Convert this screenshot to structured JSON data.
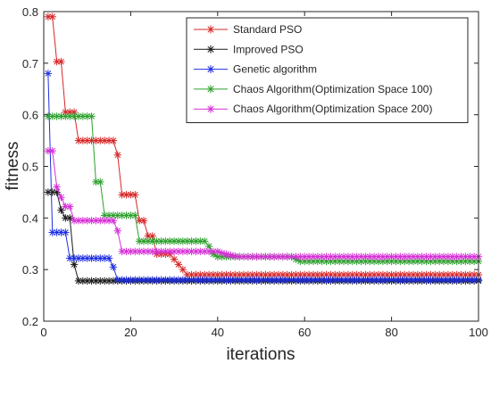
{
  "chart_data": {
    "type": "line",
    "xlabel": "iterations",
    "ylabel": "fitness",
    "xlim": [
      0,
      100
    ],
    "ylim": [
      0.2,
      0.8
    ],
    "x_ticks": [
      "0",
      "20",
      "40",
      "60",
      "80",
      "100"
    ],
    "y_ticks": [
      "0.2",
      "0.3",
      "0.4",
      "0.5",
      "0.6",
      "0.7",
      "0.8"
    ],
    "legend_position": "top-right",
    "grid": false,
    "series": [
      {
        "name": "Standard PSO",
        "color": "#d62728",
        "marker": "asterisk",
        "points": [
          [
            1,
            0.79
          ],
          [
            2,
            0.79
          ],
          [
            3,
            0.703
          ],
          [
            4,
            0.703
          ],
          [
            5,
            0.605
          ],
          [
            6,
            0.605
          ],
          [
            7,
            0.605
          ],
          [
            8,
            0.55
          ],
          [
            9,
            0.55
          ],
          [
            10,
            0.55
          ],
          [
            11,
            0.55
          ],
          [
            12,
            0.55
          ],
          [
            13,
            0.55
          ],
          [
            14,
            0.55
          ],
          [
            15,
            0.55
          ],
          [
            16,
            0.55
          ],
          [
            17,
            0.522
          ],
          [
            18,
            0.445
          ],
          [
            19,
            0.445
          ],
          [
            20,
            0.445
          ],
          [
            21,
            0.445
          ],
          [
            22,
            0.395
          ],
          [
            23,
            0.395
          ],
          [
            24,
            0.365
          ],
          [
            25,
            0.365
          ],
          [
            26,
            0.33
          ],
          [
            27,
            0.33
          ],
          [
            28,
            0.33
          ],
          [
            29,
            0.33
          ],
          [
            30,
            0.32
          ],
          [
            31,
            0.31
          ],
          [
            32,
            0.3
          ],
          [
            33,
            0.29
          ],
          [
            34,
            0.29
          ],
          [
            100,
            0.29
          ]
        ]
      },
      {
        "name": "Improved PSO",
        "color": "#1a1a1a",
        "marker": "asterisk",
        "points": [
          [
            1,
            0.45
          ],
          [
            2,
            0.45
          ],
          [
            3,
            0.45
          ],
          [
            4,
            0.415
          ],
          [
            5,
            0.4
          ],
          [
            6,
            0.4
          ],
          [
            7,
            0.31
          ],
          [
            8,
            0.278
          ],
          [
            9,
            0.278
          ],
          [
            10,
            0.278
          ],
          [
            100,
            0.278
          ]
        ]
      },
      {
        "name": "Genetic algorithm",
        "color": "#1f2fe0",
        "marker": "asterisk",
        "points": [
          [
            1,
            0.68
          ],
          [
            2,
            0.372
          ],
          [
            3,
            0.372
          ],
          [
            4,
            0.372
          ],
          [
            5,
            0.372
          ],
          [
            6,
            0.322
          ],
          [
            7,
            0.322
          ],
          [
            8,
            0.322
          ],
          [
            9,
            0.322
          ],
          [
            10,
            0.322
          ],
          [
            11,
            0.322
          ],
          [
            12,
            0.322
          ],
          [
            13,
            0.322
          ],
          [
            14,
            0.322
          ],
          [
            15,
            0.322
          ],
          [
            16,
            0.305
          ],
          [
            17,
            0.28
          ],
          [
            18,
            0.28
          ],
          [
            100,
            0.28
          ]
        ]
      },
      {
        "name": "Chaos Algorithm(Optimization Space 100)",
        "color": "#2ca02c",
        "marker": "asterisk",
        "points": [
          [
            1,
            0.597
          ],
          [
            2,
            0.597
          ],
          [
            3,
            0.597
          ],
          [
            4,
            0.597
          ],
          [
            5,
            0.597
          ],
          [
            6,
            0.597
          ],
          [
            7,
            0.597
          ],
          [
            8,
            0.597
          ],
          [
            9,
            0.597
          ],
          [
            10,
            0.597
          ],
          [
            11,
            0.597
          ],
          [
            12,
            0.47
          ],
          [
            13,
            0.47
          ],
          [
            14,
            0.405
          ],
          [
            15,
            0.405
          ],
          [
            16,
            0.405
          ],
          [
            17,
            0.405
          ],
          [
            18,
            0.405
          ],
          [
            19,
            0.405
          ],
          [
            20,
            0.405
          ],
          [
            21,
            0.405
          ],
          [
            22,
            0.355
          ],
          [
            23,
            0.355
          ],
          [
            24,
            0.355
          ],
          [
            25,
            0.355
          ],
          [
            26,
            0.355
          ],
          [
            27,
            0.355
          ],
          [
            28,
            0.355
          ],
          [
            29,
            0.355
          ],
          [
            30,
            0.355
          ],
          [
            31,
            0.355
          ],
          [
            32,
            0.355
          ],
          [
            33,
            0.355
          ],
          [
            34,
            0.355
          ],
          [
            35,
            0.355
          ],
          [
            36,
            0.355
          ],
          [
            37,
            0.355
          ],
          [
            38,
            0.345
          ],
          [
            39,
            0.33
          ],
          [
            40,
            0.325
          ],
          [
            41,
            0.325
          ],
          [
            42,
            0.325
          ],
          [
            43,
            0.325
          ],
          [
            44,
            0.325
          ],
          [
            45,
            0.325
          ],
          [
            46,
            0.325
          ],
          [
            47,
            0.325
          ],
          [
            48,
            0.325
          ],
          [
            49,
            0.325
          ],
          [
            50,
            0.325
          ],
          [
            51,
            0.325
          ],
          [
            52,
            0.325
          ],
          [
            53,
            0.325
          ],
          [
            54,
            0.325
          ],
          [
            55,
            0.325
          ],
          [
            56,
            0.325
          ],
          [
            57,
            0.325
          ],
          [
            58,
            0.32
          ],
          [
            59,
            0.316
          ],
          [
            100,
            0.316
          ]
        ]
      },
      {
        "name": "Chaos Algorithm(Optimization Space 200)",
        "color": "#d62fd6",
        "marker": "asterisk",
        "points": [
          [
            1,
            0.53
          ],
          [
            2,
            0.53
          ],
          [
            3,
            0.46
          ],
          [
            4,
            0.44
          ],
          [
            5,
            0.422
          ],
          [
            6,
            0.422
          ],
          [
            7,
            0.395
          ],
          [
            8,
            0.395
          ],
          [
            9,
            0.395
          ],
          [
            10,
            0.395
          ],
          [
            11,
            0.395
          ],
          [
            12,
            0.395
          ],
          [
            13,
            0.395
          ],
          [
            14,
            0.395
          ],
          [
            15,
            0.395
          ],
          [
            16,
            0.395
          ],
          [
            17,
            0.375
          ],
          [
            18,
            0.335
          ],
          [
            19,
            0.335
          ],
          [
            20,
            0.335
          ],
          [
            21,
            0.335
          ],
          [
            22,
            0.335
          ],
          [
            23,
            0.335
          ],
          [
            24,
            0.335
          ],
          [
            25,
            0.335
          ],
          [
            26,
            0.335
          ],
          [
            27,
            0.335
          ],
          [
            28,
            0.335
          ],
          [
            29,
            0.335
          ],
          [
            30,
            0.335
          ],
          [
            31,
            0.335
          ],
          [
            32,
            0.335
          ],
          [
            33,
            0.335
          ],
          [
            34,
            0.335
          ],
          [
            35,
            0.335
          ],
          [
            36,
            0.335
          ],
          [
            37,
            0.335
          ],
          [
            38,
            0.335
          ],
          [
            39,
            0.335
          ],
          [
            40,
            0.335
          ],
          [
            41,
            0.332
          ],
          [
            42,
            0.33
          ],
          [
            43,
            0.328
          ],
          [
            44,
            0.326
          ],
          [
            45,
            0.325
          ],
          [
            100,
            0.325
          ]
        ]
      }
    ]
  }
}
